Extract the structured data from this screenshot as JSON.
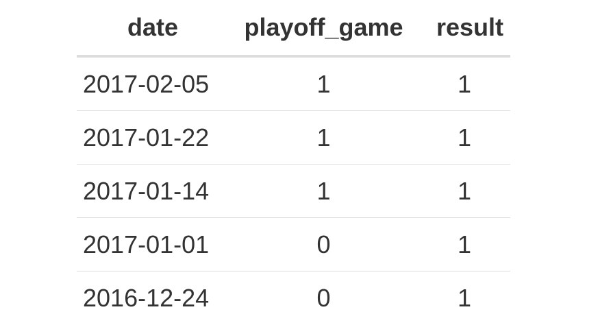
{
  "table": {
    "columns": [
      "date",
      "playoff_game",
      "result"
    ],
    "rows": [
      [
        "2017-02-05",
        "1",
        "1"
      ],
      [
        "2017-01-22",
        "1",
        "1"
      ],
      [
        "2017-01-14",
        "1",
        "1"
      ],
      [
        "2017-01-01",
        "0",
        "1"
      ],
      [
        "2016-12-24",
        "0",
        "1"
      ]
    ]
  },
  "colors": {
    "text": "#333333",
    "rule": "#dddddd",
    "background": "#ffffff"
  }
}
